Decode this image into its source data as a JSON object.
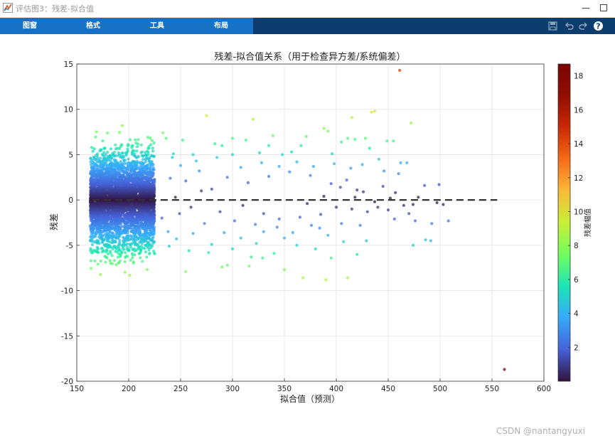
{
  "window": {
    "title": "评估图3：残差-拟合值",
    "icon": "matlab-figure-icon"
  },
  "toolstrip": {
    "tabs": [
      {
        "label": "图窗"
      },
      {
        "label": "格式"
      },
      {
        "label": "工具"
      },
      {
        "label": "布局"
      }
    ],
    "icons": [
      "save-icon",
      "undo-icon",
      "redo-icon",
      "help-icon"
    ],
    "colors": {
      "tab_strip": "#1772c5",
      "bar": "#0c3d6e"
    }
  },
  "chart_data": {
    "type": "scatter",
    "title": "残差-拟合值关系（用于检查异方差/系统偏差）",
    "xlabel": "拟合值（预测）",
    "ylabel": "残差",
    "xlim": [
      150,
      600
    ],
    "ylim": [
      -20,
      15
    ],
    "xticks": [
      150,
      200,
      250,
      300,
      350,
      400,
      450,
      500,
      550,
      600
    ],
    "yticks": [
      -20,
      -15,
      -10,
      -5,
      0,
      5,
      10,
      15
    ],
    "grid": true,
    "colormap": "turbo",
    "colorbar": {
      "label": "残差幅值",
      "range": [
        0,
        18.7
      ],
      "ticks": [
        2,
        4,
        6,
        8,
        10,
        12,
        14,
        16,
        18
      ]
    },
    "reference_line": {
      "y": 0,
      "x_range": [
        165,
        555
      ],
      "style": "dashed",
      "color": "#333333"
    },
    "color_encoding": "absolute residual",
    "dense_cluster": {
      "x_range": [
        163,
        225
      ],
      "y_range": [
        -9.5,
        9.5
      ],
      "approx_points": 4000
    },
    "points": [
      [
        461,
        14.3
      ],
      [
        562,
        -18.7
      ],
      [
        472,
        8.5
      ],
      [
        437,
        9.8
      ],
      [
        434,
        9.7
      ],
      [
        415,
        9.1
      ],
      [
        275,
        9.3
      ],
      [
        320,
        8.9
      ],
      [
        388,
        7.9
      ],
      [
        392,
        7.6
      ],
      [
        371,
        7.0
      ],
      [
        339,
        7.1
      ],
      [
        300,
        6.8
      ],
      [
        313,
        6.6
      ],
      [
        252,
        6.6
      ],
      [
        449,
        6.5
      ],
      [
        455,
        6.5
      ],
      [
        411,
        6.8
      ],
      [
        418,
        6.7
      ],
      [
        428,
        6.8
      ],
      [
        405,
        6.4
      ],
      [
        283,
        6.2
      ],
      [
        290,
        6.0
      ],
      [
        335,
        6.0
      ],
      [
        366,
        6.0
      ],
      [
        432,
        5.7
      ],
      [
        468,
        4.1
      ],
      [
        462,
        4.1
      ],
      [
        441,
        4.5
      ],
      [
        396,
        5.1
      ],
      [
        357,
        5.3
      ],
      [
        348,
        5.0
      ],
      [
        326,
        5.2
      ],
      [
        300,
        5.0
      ],
      [
        262,
        5.0
      ],
      [
        243,
        5.1
      ],
      [
        378,
        3.7
      ],
      [
        414,
        3.5
      ],
      [
        446,
        3.2
      ],
      [
        485,
        1.6
      ],
      [
        499,
        1.7
      ],
      [
        479,
        0.3
      ],
      [
        497,
        -0.3
      ],
      [
        508,
        -2.3
      ],
      [
        474,
        -0.5
      ],
      [
        465,
        -0.6
      ],
      [
        452,
        0.2
      ],
      [
        486,
        -4.4
      ],
      [
        474,
        -5.0
      ],
      [
        491,
        -4.5
      ],
      [
        456,
        -2.1
      ],
      [
        423,
        -2.8
      ],
      [
        430,
        -1.3
      ],
      [
        440,
        -0.8
      ],
      [
        400,
        -0.8
      ],
      [
        385,
        -1.6
      ],
      [
        365,
        -1.9
      ],
      [
        345,
        -2.1
      ],
      [
        330,
        -1.5
      ],
      [
        310,
        -0.6
      ],
      [
        280,
        1.2
      ],
      [
        260,
        -0.8
      ],
      [
        245,
        0.3
      ],
      [
        240,
        2.4
      ],
      [
        255,
        2.1
      ],
      [
        270,
        1.0
      ],
      [
        295,
        2.5
      ],
      [
        315,
        1.9
      ],
      [
        335,
        2.6
      ],
      [
        355,
        3.1
      ],
      [
        375,
        2.7
      ],
      [
        395,
        1.8
      ],
      [
        410,
        2.2
      ],
      [
        420,
        1.1
      ],
      [
        445,
        1.5
      ],
      [
        460,
        2.9
      ],
      [
        330,
        -3.5
      ],
      [
        350,
        -4.2
      ],
      [
        362,
        -5.0
      ],
      [
        380,
        -5.4
      ],
      [
        395,
        -6.4
      ],
      [
        420,
        -6.0
      ],
      [
        429,
        -4.5
      ],
      [
        407,
        -4.6
      ],
      [
        384,
        -3.1
      ],
      [
        340,
        -5.9
      ],
      [
        318,
        -6.3
      ],
      [
        300,
        -5.4
      ],
      [
        280,
        -4.9
      ],
      [
        258,
        -5.6
      ],
      [
        239,
        -5.1
      ],
      [
        390,
        -8.8
      ],
      [
        368,
        -8.6
      ],
      [
        411,
        -8.6
      ],
      [
        350,
        -7.7
      ],
      [
        316,
        -7.3
      ],
      [
        295,
        -7.2
      ],
      [
        290,
        -7.4
      ],
      [
        329,
        -6.4
      ],
      [
        255,
        -7.9
      ],
      [
        246,
        -4.3
      ],
      [
        273,
        -2.6
      ],
      [
        288,
        -1.3
      ],
      [
        302,
        -2.3
      ],
      [
        322,
        -2.7
      ],
      [
        372,
        -0.4
      ],
      [
        388,
        0.4
      ],
      [
        404,
        1.4
      ],
      [
        418,
        0.3
      ],
      [
        437,
        -0.2
      ],
      [
        450,
        -1.1
      ],
      [
        470,
        -1.5
      ],
      [
        265,
        4.3
      ],
      [
        233,
        7.4
      ],
      [
        236,
        6.8
      ],
      [
        242,
        4.7
      ],
      [
        250,
        3.8
      ],
      [
        268,
        3.2
      ],
      [
        285,
        4.7
      ],
      [
        308,
        3.6
      ],
      [
        328,
        4.1
      ],
      [
        345,
        3.7
      ],
      [
        362,
        4.2
      ],
      [
        398,
        4.0
      ],
      [
        425,
        3.9
      ],
      [
        457,
        0.8
      ],
      [
        476,
        -2.3
      ],
      [
        492,
        -2.6
      ],
      [
        503,
        -0.5
      ],
      [
        232,
        -2.0
      ],
      [
        238,
        -3.5
      ],
      [
        249,
        -1.5
      ],
      [
        262,
        -3.7
      ],
      [
        277,
        -5.8
      ],
      [
        292,
        -3.6
      ],
      [
        308,
        -4.2
      ],
      [
        323,
        -4.8
      ],
      [
        343,
        -3.0
      ],
      [
        358,
        -3.6
      ],
      [
        376,
        -2.8
      ],
      [
        392,
        -3.9
      ],
      [
        405,
        -2.6
      ],
      [
        415,
        -1.0
      ],
      [
        426,
        0.9
      ]
    ]
  },
  "watermark": "CSDN @nantangyuxi"
}
